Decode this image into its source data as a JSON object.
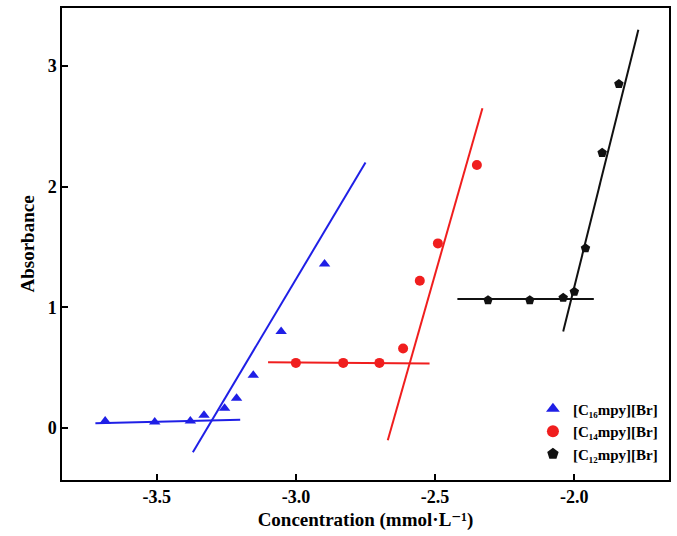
{
  "chart_data": {
    "type": "scatter",
    "x_label": "Concentration (mmol·L⁻¹)",
    "y_label": "Absorbance",
    "xlim": [
      -3.84,
      -1.66
    ],
    "ylim": [
      -0.43,
      3.48
    ],
    "xticks": [
      {
        "value": -3.5,
        "label": "-3.5"
      },
      {
        "value": -3.0,
        "label": "-3.0"
      },
      {
        "value": -2.5,
        "label": "-2.5"
      },
      {
        "value": -2.0,
        "label": "-2.0"
      }
    ],
    "yticks": [
      0,
      1,
      2,
      3
    ],
    "grid": false,
    "legend": "lower right",
    "series": [
      {
        "name": "[C₁₆mpy][Br]",
        "color": "#1f1fe6",
        "marker": "triangle-up",
        "x": [
          -3.685,
          -3.507,
          -3.379,
          -3.33,
          -3.256,
          -3.213,
          -3.153,
          -3.053,
          -2.897
        ],
        "values": [
          0.058,
          0.05,
          0.058,
          0.107,
          0.165,
          0.247,
          0.437,
          0.8,
          1.36
        ],
        "fit_lines": [
          {
            "x": [
              -3.72,
              -3.2
            ],
            "y": [
              0.04,
              0.07
            ]
          },
          {
            "x": [
              -3.37,
              -2.75
            ],
            "y": [
              -0.2,
              2.2
            ]
          }
        ]
      },
      {
        "name": "[C₁₄mpy][Br]",
        "color": "#f01e1e",
        "marker": "circle",
        "x": [
          -3.0,
          -2.83,
          -2.7,
          -2.615,
          -2.555,
          -2.49,
          -2.35
        ],
        "values": [
          0.54,
          0.54,
          0.54,
          0.66,
          1.22,
          1.53,
          2.18
        ],
        "fit_lines": [
          {
            "x": [
              -3.1,
              -2.52
            ],
            "y": [
              0.545,
              0.535
            ]
          },
          {
            "x": [
              -2.67,
              -2.33
            ],
            "y": [
              -0.1,
              2.65
            ]
          }
        ]
      },
      {
        "name": "[C₁₂mpy][Br]",
        "color": "#111111",
        "marker": "pentagon",
        "x": [
          -2.31,
          -2.16,
          -2.04,
          -2.0,
          -1.96,
          -1.9,
          -1.84
        ],
        "values": [
          1.06,
          1.06,
          1.08,
          1.13,
          1.49,
          2.28,
          2.85
        ],
        "fit_lines": [
          {
            "x": [
              -2.42,
              -1.93
            ],
            "y": [
              1.07,
              1.07
            ]
          },
          {
            "x": [
              -2.04,
              -1.77
            ],
            "y": [
              0.8,
              3.3
            ]
          }
        ]
      }
    ]
  }
}
